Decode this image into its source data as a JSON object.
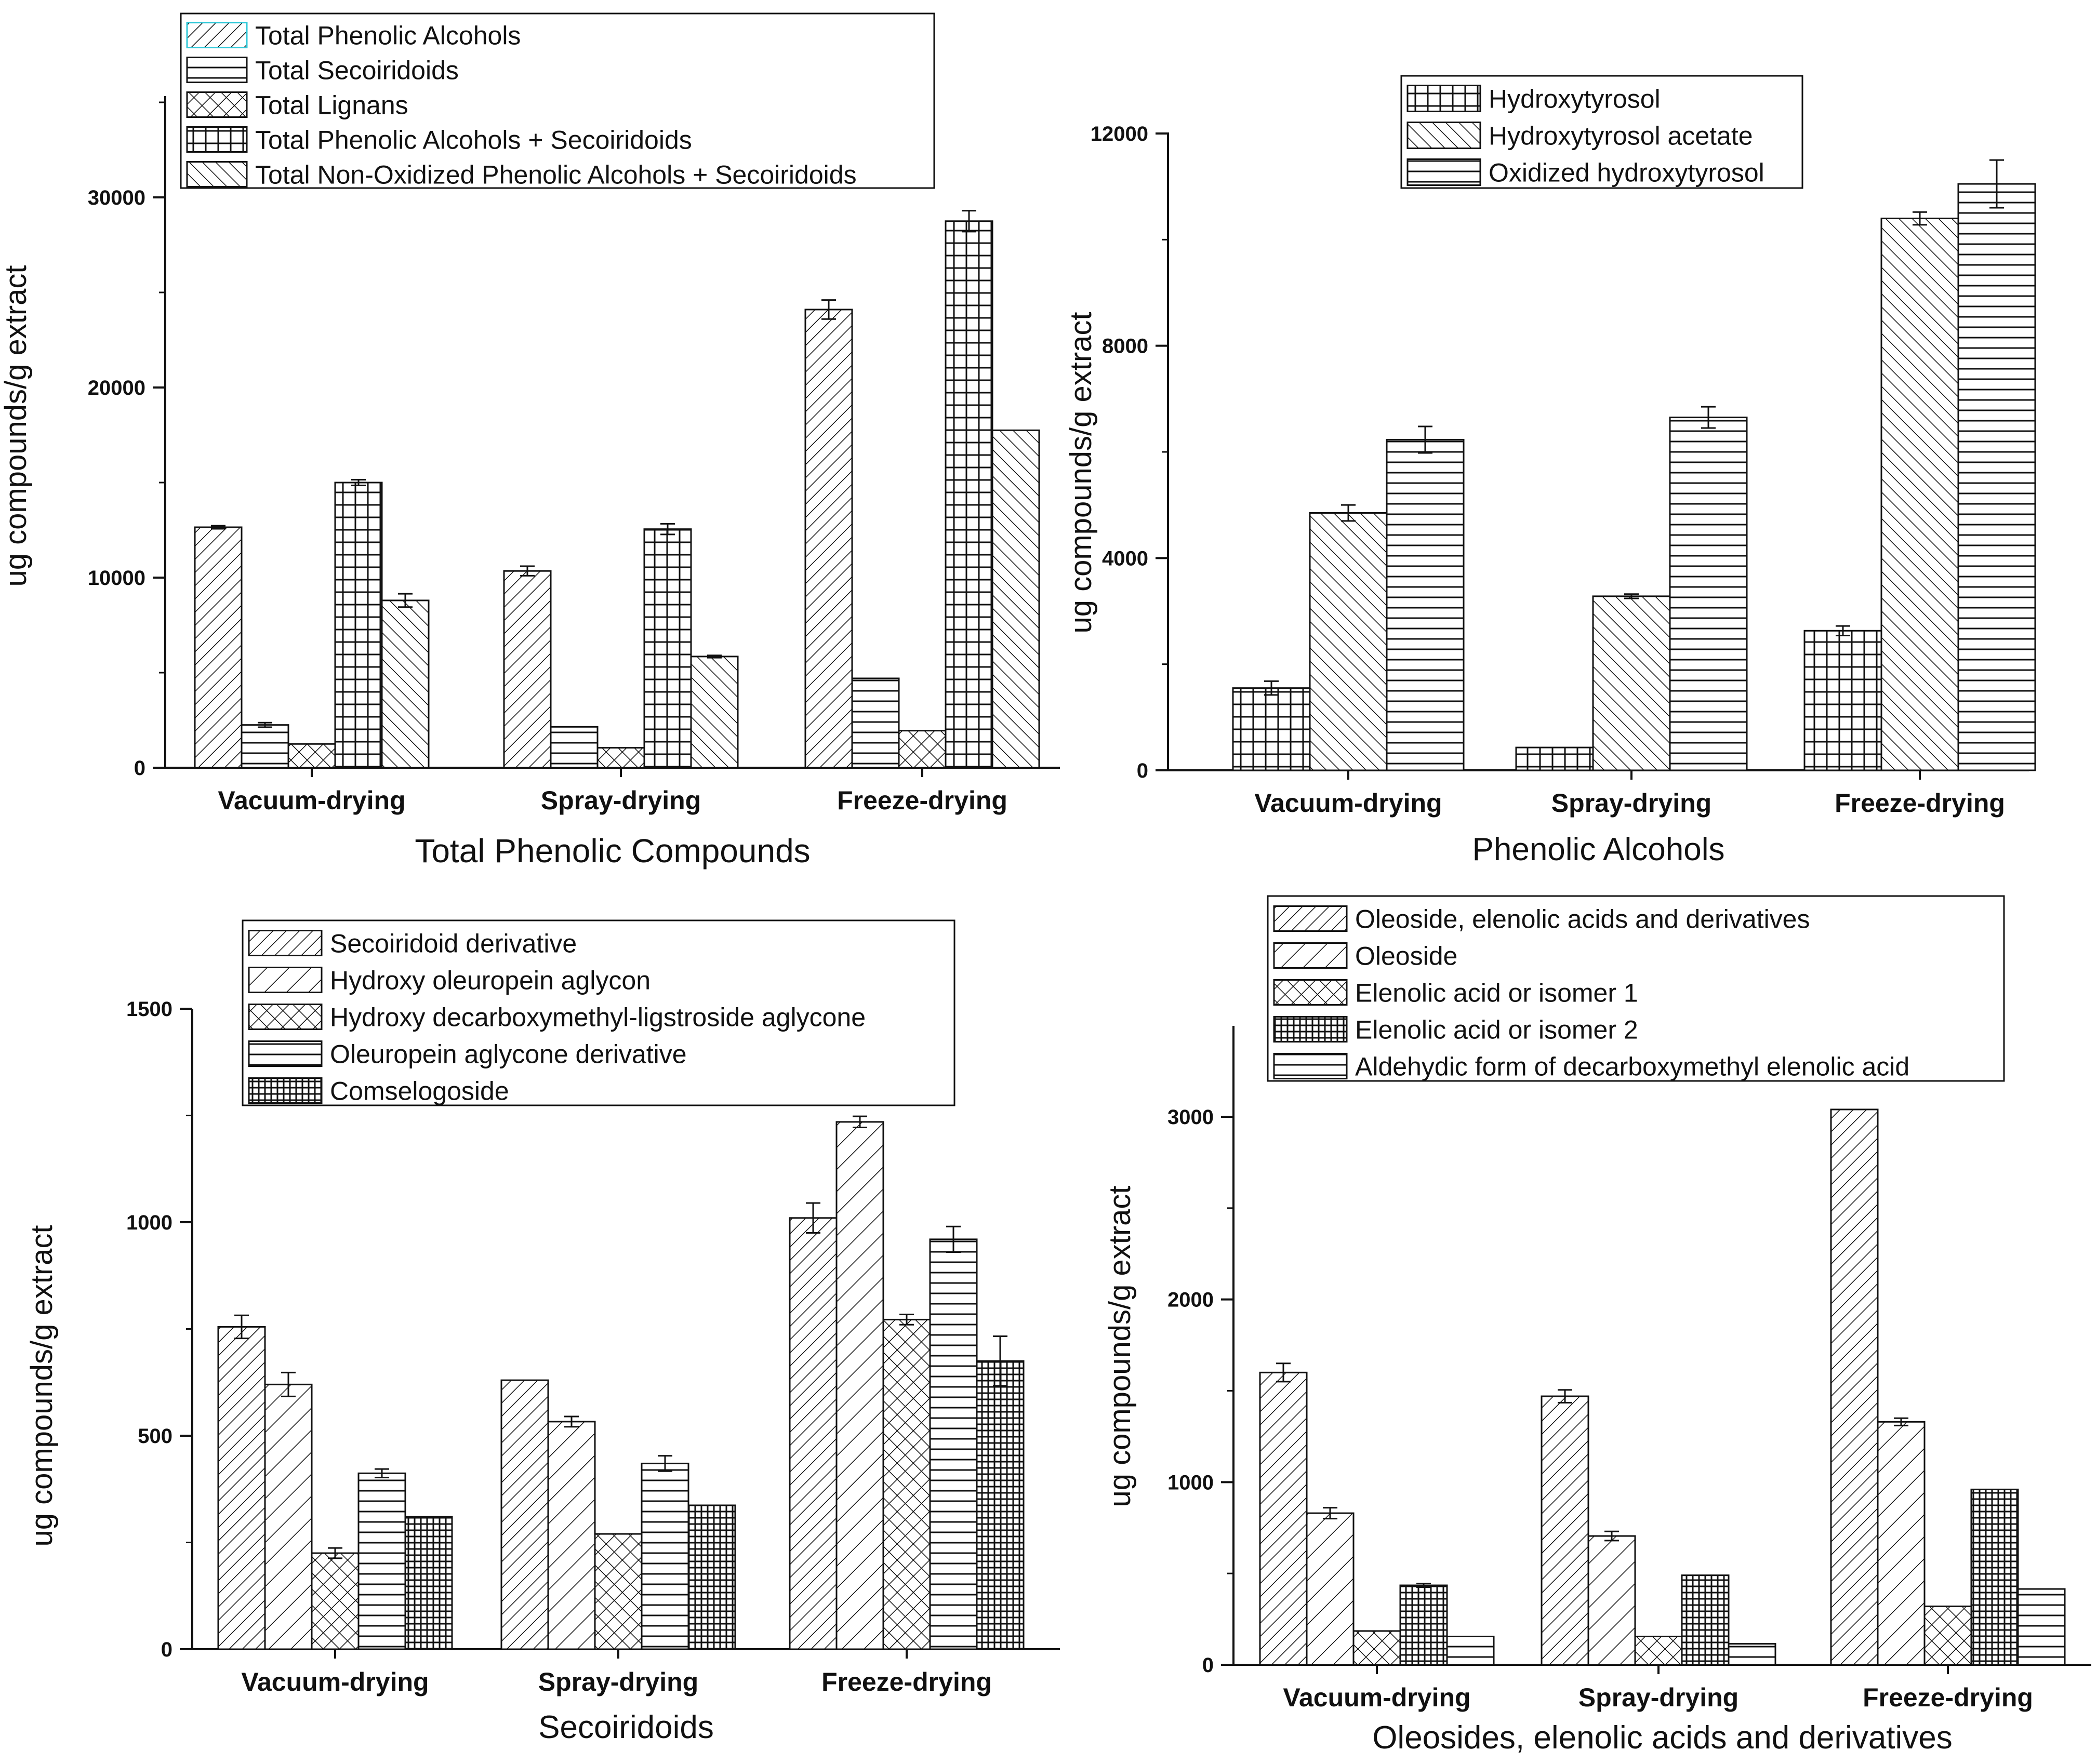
{
  "colors": {
    "ink": "#111111",
    "background": "#ffffff",
    "legend_first_swatch_accent": "#e03030",
    "legend_first_swatch_accent2": "#30c8d8"
  },
  "chart_data": [
    {
      "type": "bar",
      "title": "Total Phenolic Compounds",
      "xlabel": "Total Phenolic Compounds",
      "ylabel": "ug compounds/g extract",
      "categories": [
        "Vacuum-drying",
        "Spray-drying",
        "Freeze-drying"
      ],
      "ylim": [
        0,
        35000
      ],
      "yticks": [
        0,
        10000,
        20000,
        30000
      ],
      "ytick_labels": [
        "0",
        "10000",
        "20000",
        "30000"
      ],
      "legend_position": "top",
      "series": [
        {
          "name": "Total Phenolic Alcohols",
          "pattern": "diag-fwd-dense",
          "values": [
            12650,
            10350,
            24100
          ],
          "errors": [
            80,
            250,
            500
          ]
        },
        {
          "name": "Total Secoiridoids",
          "pattern": "horizontal",
          "values": [
            2250,
            2150,
            4700
          ],
          "errors": [
            120,
            0,
            0
          ]
        },
        {
          "name": "Total Lignans",
          "pattern": "crosshatch-diag",
          "values": [
            1250,
            1050,
            1950
          ],
          "errors": [
            0,
            0,
            0
          ]
        },
        {
          "name": "Total Phenolic Alcohols + Secoiridoids",
          "pattern": "grid",
          "values": [
            15000,
            12550,
            28750
          ],
          "errors": [
            150,
            280,
            550
          ]
        },
        {
          "name": "Total Non-Oxidized Phenolic Alcohols + Secoiridoids",
          "pattern": "diag-back",
          "values": [
            8800,
            5850,
            17750
          ],
          "errors": [
            350,
            60,
            0
          ]
        }
      ]
    },
    {
      "type": "bar",
      "title": "Phenolic Alcohols",
      "xlabel": "Phenolic Alcohols",
      "ylabel": "ug compounds/g extract",
      "categories": [
        "Vacuum-drying",
        "Spray-drying",
        "Freeze-drying"
      ],
      "ylim": [
        0,
        12000
      ],
      "yticks": [
        0,
        4000,
        8000,
        12000
      ],
      "ytick_labels": [
        "0",
        "4000",
        "8000",
        "12000"
      ],
      "legend_position": "top-center",
      "series": [
        {
          "name": "Hydroxytyrosol",
          "pattern": "grid",
          "values": [
            1550,
            430,
            2630
          ],
          "errors": [
            130,
            0,
            90
          ]
        },
        {
          "name": "Hydroxytyrosol acetate",
          "pattern": "diag-back",
          "values": [
            4850,
            3280,
            10400
          ],
          "errors": [
            150,
            40,
            120
          ]
        },
        {
          "name": "Oxidized hydroxytyrosol",
          "pattern": "horizontal",
          "values": [
            6230,
            6650,
            11050
          ],
          "errors": [
            250,
            200,
            450
          ]
        }
      ]
    },
    {
      "type": "bar",
      "title": "Secoiridoids",
      "xlabel": "Secoiridoids",
      "ylabel": "ug compounds/g extract",
      "categories": [
        "Vacuum-drying",
        "Spray-drying",
        "Freeze-drying"
      ],
      "ylim": [
        0,
        1500
      ],
      "yticks": [
        0,
        500,
        1000,
        1500
      ],
      "ytick_labels": [
        "0",
        "500",
        "1000",
        "1500"
      ],
      "legend_position": "top",
      "series": [
        {
          "name": "Secoiridoid derivative",
          "pattern": "diag-fwd-dense",
          "values": [
            755,
            630,
            1010
          ],
          "errors": [
            27,
            0,
            35
          ]
        },
        {
          "name": "Hydroxy oleuropein aglycon",
          "pattern": "diag-fwd-sparse",
          "values": [
            620,
            533,
            1235
          ],
          "errors": [
            28,
            12,
            13
          ]
        },
        {
          "name": "Hydroxy decarboxymethyl-ligstroside aglycone",
          "pattern": "crosshatch-diag",
          "values": [
            225,
            270,
            772
          ],
          "errors": [
            12,
            0,
            12
          ]
        },
        {
          "name": "Oleuropein aglycone derivative",
          "pattern": "horizontal",
          "values": [
            412,
            435,
            960
          ],
          "errors": [
            10,
            18,
            30
          ]
        },
        {
          "name": "Comselogoside",
          "pattern": "dense-grid",
          "values": [
            310,
            337,
            675
          ],
          "errors": [
            0,
            0,
            58
          ]
        }
      ]
    },
    {
      "type": "bar",
      "title": "Oleosides, elenolic acids and derivatives",
      "xlabel": "Oleosides, elenolic acids and derivatives",
      "ylabel": "ug compounds/g extract",
      "categories": [
        "Vacuum-drying",
        "Spray-drying",
        "Freeze-drying"
      ],
      "ylim": [
        0,
        3500
      ],
      "yticks": [
        0,
        1000,
        2000,
        3000
      ],
      "ytick_labels": [
        "0",
        "1000",
        "2000",
        "3000"
      ],
      "legend_position": "top",
      "series": [
        {
          "name": "Oleoside, elenolic acids and derivatives",
          "pattern": "diag-fwd-dense",
          "values": [
            1600,
            1470,
            3040
          ],
          "errors": [
            50,
            35,
            0
          ]
        },
        {
          "name": "Oleoside",
          "pattern": "diag-fwd-sparse",
          "values": [
            830,
            705,
            1330
          ],
          "errors": [
            30,
            25,
            20
          ]
        },
        {
          "name": "Elenolic acid or isomer 1",
          "pattern": "crosshatch-diag",
          "values": [
            185,
            155,
            320
          ],
          "errors": [
            0,
            0,
            0
          ]
        },
        {
          "name": "Elenolic acid or isomer 2",
          "pattern": "dense-grid",
          "values": [
            435,
            490,
            960
          ],
          "errors": [
            10,
            0,
            0
          ]
        },
        {
          "name": "Aldehydic form of decarboxymethyl elenolic acid",
          "pattern": "horizontal",
          "values": [
            155,
            115,
            415
          ],
          "errors": [
            0,
            0,
            0
          ]
        }
      ]
    }
  ]
}
